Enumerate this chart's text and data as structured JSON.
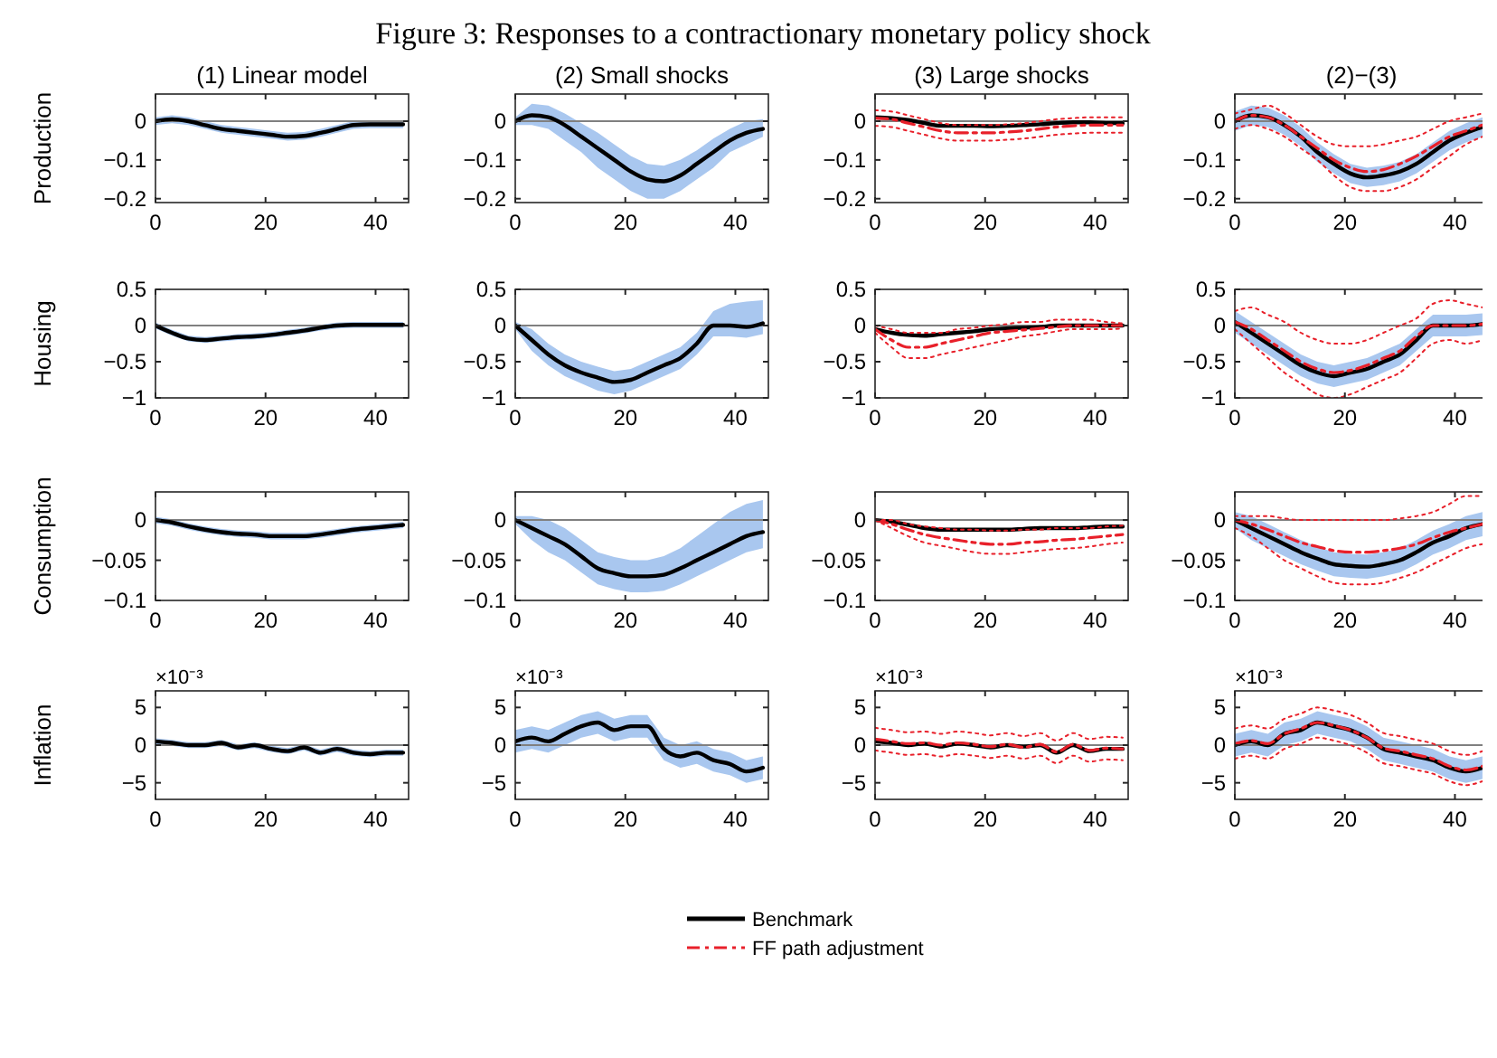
{
  "chart_data": [
    {
      "type": "other",
      "title": "Figure 3: Responses to a contractionary monetary policy shock"
    },
    {
      "type": "line",
      "title": "(1) Linear model",
      "ylabel": "Production",
      "xlim": [
        0,
        46
      ],
      "xticks": [
        0,
        20,
        40
      ],
      "ylim": [
        -0.21,
        0.07
      ],
      "yticks": [
        -0.2,
        -0.1,
        0
      ],
      "ref_lines": [
        {
          "axis": "y",
          "value": 0,
          "color": "#808080"
        }
      ],
      "x": [
        0,
        3,
        6,
        9,
        12,
        15,
        18,
        21,
        24,
        27,
        30,
        33,
        36,
        39,
        42,
        45
      ],
      "series": [
        {
          "color": "#000000",
          "line_style": "solid",
          "values": [
            0,
            0.005,
            0,
            -0.01,
            -0.02,
            -0.025,
            -0.03,
            -0.035,
            -0.04,
            -0.038,
            -0.03,
            -0.02,
            -0.01,
            -0.008,
            -0.008,
            -0.008
          ],
          "lower": [
            -0.01,
            -0.005,
            -0.01,
            -0.02,
            -0.03,
            -0.035,
            -0.04,
            -0.045,
            -0.05,
            -0.048,
            -0.04,
            -0.03,
            -0.02,
            -0.018,
            -0.018,
            -0.018
          ],
          "upper": [
            0.01,
            0.015,
            0.01,
            0,
            -0.01,
            -0.015,
            -0.02,
            -0.025,
            -0.03,
            -0.028,
            -0.02,
            -0.01,
            0,
            0.002,
            0.002,
            0.002
          ]
        }
      ]
    },
    {
      "type": "line",
      "title": "(2) Small shocks",
      "xlim": [
        0,
        46
      ],
      "xticks": [
        0,
        20,
        40
      ],
      "ylim": [
        -0.21,
        0.07
      ],
      "yticks": [
        -0.2,
        -0.1,
        0
      ],
      "ref_lines": [
        {
          "axis": "y",
          "value": 0,
          "color": "#808080"
        }
      ],
      "x": [
        0,
        3,
        6,
        9,
        12,
        15,
        18,
        21,
        24,
        27,
        30,
        33,
        36,
        39,
        42,
        45
      ],
      "series": [
        {
          "color": "#000000",
          "line_style": "solid",
          "values": [
            0,
            0.015,
            0.01,
            -0.01,
            -0.04,
            -0.07,
            -0.1,
            -0.13,
            -0.15,
            -0.155,
            -0.14,
            -0.11,
            -0.08,
            -0.05,
            -0.03,
            -0.02
          ],
          "lower": [
            -0.01,
            -0.01,
            -0.02,
            -0.05,
            -0.08,
            -0.12,
            -0.15,
            -0.18,
            -0.2,
            -0.2,
            -0.18,
            -0.15,
            -0.12,
            -0.08,
            -0.06,
            -0.04
          ],
          "upper": [
            0.01,
            0.045,
            0.04,
            0.02,
            -0.005,
            -0.03,
            -0.06,
            -0.09,
            -0.11,
            -0.115,
            -0.1,
            -0.075,
            -0.045,
            -0.02,
            0,
            0.005
          ]
        }
      ]
    },
    {
      "type": "line",
      "title": "(3) Large shocks",
      "xlim": [
        0,
        46
      ],
      "xticks": [
        0,
        20,
        40
      ],
      "ylim": [
        -0.21,
        0.07
      ],
      "yticks": [
        -0.2,
        -0.1,
        0
      ],
      "ref_lines": [
        {
          "axis": "y",
          "value": 0,
          "color": "#808080"
        }
      ],
      "x": [
        0,
        3,
        6,
        9,
        12,
        15,
        18,
        21,
        24,
        27,
        30,
        33,
        36,
        39,
        42,
        45
      ],
      "series": [
        {
          "color": "#000000",
          "line_style": "solid",
          "values": [
            0.01,
            0.008,
            0.003,
            -0.005,
            -0.012,
            -0.012,
            -0.012,
            -0.013,
            -0.012,
            -0.01,
            -0.008,
            -0.005,
            -0.003,
            -0.003,
            -0.005,
            -0.005
          ]
        },
        {
          "color": "#e8202a",
          "line_style": "dashed",
          "values": [
            0.008,
            0.005,
            -0.005,
            -0.015,
            -0.025,
            -0.03,
            -0.03,
            -0.03,
            -0.028,
            -0.025,
            -0.02,
            -0.015,
            -0.012,
            -0.01,
            -0.01,
            -0.01
          ]
        },
        {
          "color": "#e8202a",
          "line_style": "dotted",
          "values": [
            -0.012,
            -0.015,
            -0.025,
            -0.035,
            -0.045,
            -0.05,
            -0.05,
            -0.05,
            -0.048,
            -0.045,
            -0.04,
            -0.035,
            -0.032,
            -0.03,
            -0.03,
            -0.03
          ]
        },
        {
          "color": "#e8202a",
          "line_style": "dotted",
          "values": [
            0.028,
            0.025,
            0.015,
            0.005,
            -0.005,
            -0.01,
            -0.01,
            -0.01,
            -0.008,
            -0.005,
            0,
            0.005,
            0.008,
            0.01,
            0.01,
            0.01
          ]
        }
      ]
    },
    {
      "type": "line",
      "title": "(2)−(3)",
      "xlim": [
        0,
        46
      ],
      "xticks": [
        0,
        20,
        40
      ],
      "ylim": [
        -0.21,
        0.07
      ],
      "yticks": [
        -0.2,
        -0.1,
        0
      ],
      "ref_lines": [
        {
          "axis": "y",
          "value": 0,
          "color": "#808080"
        }
      ],
      "x": [
        0,
        3,
        6,
        9,
        12,
        15,
        18,
        21,
        24,
        27,
        30,
        33,
        36,
        39,
        42,
        45
      ],
      "series": [
        {
          "color": "#000000",
          "line_style": "solid",
          "values": [
            0,
            0.015,
            0.01,
            -0.01,
            -0.04,
            -0.08,
            -0.11,
            -0.135,
            -0.145,
            -0.14,
            -0.13,
            -0.11,
            -0.08,
            -0.05,
            -0.03,
            -0.015
          ],
          "lower": [
            -0.025,
            -0.01,
            -0.015,
            -0.035,
            -0.065,
            -0.105,
            -0.135,
            -0.16,
            -0.17,
            -0.165,
            -0.155,
            -0.135,
            -0.105,
            -0.075,
            -0.055,
            -0.04
          ],
          "upper": [
            0.025,
            0.04,
            0.035,
            0.015,
            -0.015,
            -0.055,
            -0.085,
            -0.11,
            -0.12,
            -0.115,
            -0.105,
            -0.085,
            -0.055,
            -0.025,
            -0.005,
            0.01
          ]
        },
        {
          "color": "#e8202a",
          "line_style": "dashed",
          "values": [
            0,
            0.015,
            0.01,
            -0.01,
            -0.04,
            -0.07,
            -0.1,
            -0.12,
            -0.13,
            -0.125,
            -0.11,
            -0.09,
            -0.065,
            -0.04,
            -0.025,
            -0.01
          ]
        },
        {
          "color": "#e8202a",
          "line_style": "dotted",
          "values": [
            -0.02,
            -0.01,
            -0.02,
            -0.04,
            -0.07,
            -0.1,
            -0.14,
            -0.17,
            -0.18,
            -0.18,
            -0.17,
            -0.15,
            -0.12,
            -0.09,
            -0.06,
            -0.04
          ]
        },
        {
          "color": "#e8202a",
          "line_style": "dotted",
          "values": [
            0.02,
            0.03,
            0.04,
            0.02,
            -0.01,
            -0.04,
            -0.06,
            -0.065,
            -0.065,
            -0.06,
            -0.05,
            -0.04,
            -0.02,
            0,
            0.01,
            0.02
          ]
        }
      ]
    },
    {
      "type": "line",
      "ylabel": "Housing",
      "xlim": [
        0,
        46
      ],
      "xticks": [
        0,
        20,
        40
      ],
      "ylim": [
        -1,
        0.5
      ],
      "yticks": [
        -1,
        -0.5,
        0,
        0.5
      ],
      "ref_lines": [
        {
          "axis": "y",
          "value": 0,
          "color": "#808080"
        }
      ],
      "x": [
        0,
        3,
        6,
        9,
        12,
        15,
        18,
        21,
        24,
        27,
        30,
        33,
        36,
        39,
        42,
        45
      ],
      "series": [
        {
          "color": "#000000",
          "line_style": "solid",
          "values": [
            0,
            -0.1,
            -0.18,
            -0.2,
            -0.18,
            -0.16,
            -0.15,
            -0.13,
            -0.1,
            -0.07,
            -0.03,
            0,
            0.01,
            0.01,
            0.01,
            0.01
          ],
          "lower": [
            -0.04,
            -0.14,
            -0.22,
            -0.24,
            -0.22,
            -0.2,
            -0.19,
            -0.17,
            -0.14,
            -0.11,
            -0.07,
            -0.04,
            -0.03,
            -0.03,
            -0.03,
            -0.03
          ],
          "upper": [
            0.04,
            -0.06,
            -0.14,
            -0.16,
            -0.14,
            -0.12,
            -0.11,
            -0.09,
            -0.06,
            -0.03,
            0.01,
            0.04,
            0.05,
            0.05,
            0.05,
            0.05
          ]
        }
      ]
    },
    {
      "type": "line",
      "xlim": [
        0,
        46
      ],
      "xticks": [
        0,
        20,
        40
      ],
      "ylim": [
        -1,
        0.5
      ],
      "yticks": [
        -1,
        -0.5,
        0,
        0.5
      ],
      "ref_lines": [
        {
          "axis": "y",
          "value": 0,
          "color": "#808080"
        }
      ],
      "x": [
        0,
        3,
        6,
        9,
        12,
        15,
        18,
        21,
        24,
        27,
        30,
        33,
        36,
        39,
        42,
        45
      ],
      "series": [
        {
          "color": "#000000",
          "line_style": "solid",
          "values": [
            0,
            -0.2,
            -0.4,
            -0.55,
            -0.65,
            -0.72,
            -0.78,
            -0.75,
            -0.65,
            -0.55,
            -0.45,
            -0.25,
            0,
            0,
            -0.02,
            0.03
          ],
          "lower": [
            -0.05,
            -0.35,
            -0.55,
            -0.7,
            -0.8,
            -0.9,
            -0.95,
            -0.9,
            -0.8,
            -0.7,
            -0.6,
            -0.4,
            -0.15,
            -0.15,
            -0.17,
            -0.12
          ],
          "upper": [
            0.05,
            -0.05,
            -0.25,
            -0.4,
            -0.5,
            -0.57,
            -0.63,
            -0.6,
            -0.5,
            -0.4,
            -0.3,
            -0.1,
            0.2,
            0.3,
            0.33,
            0.35
          ]
        }
      ]
    },
    {
      "type": "line",
      "xlim": [
        0,
        46
      ],
      "xticks": [
        0,
        20,
        40
      ],
      "ylim": [
        -1,
        0.5
      ],
      "yticks": [
        -1,
        -0.5,
        0,
        0.5
      ],
      "ref_lines": [
        {
          "axis": "y",
          "value": 0,
          "color": "#808080"
        }
      ],
      "x": [
        0,
        3,
        6,
        9,
        12,
        15,
        18,
        21,
        24,
        27,
        30,
        33,
        36,
        39,
        42,
        45
      ],
      "series": [
        {
          "color": "#000000",
          "line_style": "solid",
          "values": [
            -0.05,
            -0.1,
            -0.13,
            -0.14,
            -0.12,
            -0.1,
            -0.08,
            -0.05,
            -0.04,
            -0.03,
            -0.02,
            0,
            0,
            0,
            0,
            0
          ]
        },
        {
          "color": "#e8202a",
          "line_style": "dashed",
          "values": [
            -0.05,
            -0.2,
            -0.3,
            -0.3,
            -0.25,
            -0.2,
            -0.15,
            -0.1,
            -0.08,
            -0.06,
            -0.04,
            -0.02,
            0,
            0,
            0,
            0
          ]
        },
        {
          "color": "#e8202a",
          "line_style": "dotted",
          "values": [
            -0.1,
            -0.3,
            -0.45,
            -0.45,
            -0.4,
            -0.35,
            -0.3,
            -0.25,
            -0.2,
            -0.15,
            -0.12,
            -0.08,
            -0.05,
            -0.05,
            -0.05,
            -0.04
          ]
        },
        {
          "color": "#e8202a",
          "line_style": "dotted",
          "values": [
            0,
            -0.05,
            -0.1,
            -0.1,
            -0.1,
            -0.05,
            -0.03,
            0,
            0.02,
            0.05,
            0.05,
            0.08,
            0.08,
            0.08,
            0.05,
            0.03
          ]
        }
      ]
    },
    {
      "type": "line",
      "xlim": [
        0,
        46
      ],
      "xticks": [
        0,
        20,
        40
      ],
      "ylim": [
        -1,
        0.5
      ],
      "yticks": [
        -1,
        -0.5,
        0,
        0.5
      ],
      "ref_lines": [
        {
          "axis": "y",
          "value": 0,
          "color": "#808080"
        }
      ],
      "x": [
        0,
        3,
        6,
        9,
        12,
        15,
        18,
        21,
        24,
        27,
        30,
        33,
        36,
        39,
        42,
        45
      ],
      "series": [
        {
          "color": "#000000",
          "line_style": "solid",
          "values": [
            0.05,
            -0.1,
            -0.25,
            -0.4,
            -0.55,
            -0.65,
            -0.7,
            -0.65,
            -0.6,
            -0.5,
            -0.4,
            -0.2,
            0,
            0,
            0,
            0.02
          ],
          "lower": [
            -0.1,
            -0.25,
            -0.4,
            -0.55,
            -0.7,
            -0.8,
            -0.85,
            -0.8,
            -0.75,
            -0.65,
            -0.55,
            -0.35,
            -0.15,
            -0.15,
            -0.15,
            -0.13
          ],
          "upper": [
            0.2,
            0.05,
            -0.1,
            -0.25,
            -0.4,
            -0.5,
            -0.55,
            -0.5,
            -0.45,
            -0.35,
            -0.25,
            -0.05,
            0.15,
            0.15,
            0.15,
            0.17
          ]
        },
        {
          "color": "#e8202a",
          "line_style": "dashed",
          "values": [
            0.05,
            -0.05,
            -0.2,
            -0.35,
            -0.5,
            -0.6,
            -0.65,
            -0.62,
            -0.55,
            -0.45,
            -0.35,
            -0.15,
            0,
            0,
            0,
            0.02
          ]
        },
        {
          "color": "#e8202a",
          "line_style": "dotted",
          "values": [
            -0.05,
            -0.25,
            -0.45,
            -0.65,
            -0.8,
            -0.95,
            -1,
            -0.95,
            -0.85,
            -0.75,
            -0.65,
            -0.45,
            -0.25,
            -0.2,
            -0.25,
            -0.2
          ]
        },
        {
          "color": "#e8202a",
          "line_style": "dotted",
          "values": [
            0.2,
            0.25,
            0.15,
            0.05,
            -0.1,
            -0.2,
            -0.25,
            -0.25,
            -0.2,
            -0.1,
            0,
            0.1,
            0.3,
            0.35,
            0.3,
            0.25
          ]
        }
      ]
    },
    {
      "type": "line",
      "ylabel": "Consumption",
      "xlim": [
        0,
        46
      ],
      "xticks": [
        0,
        20,
        40
      ],
      "ylim": [
        -0.1,
        0.035
      ],
      "yticks": [
        -0.1,
        -0.05,
        0
      ],
      "ref_lines": [
        {
          "axis": "y",
          "value": 0,
          "color": "#808080"
        }
      ],
      "x": [
        0,
        3,
        6,
        9,
        12,
        15,
        18,
        21,
        24,
        27,
        30,
        33,
        36,
        39,
        42,
        45
      ],
      "series": [
        {
          "color": "#000000",
          "line_style": "solid",
          "values": [
            0,
            -0.003,
            -0.008,
            -0.012,
            -0.015,
            -0.017,
            -0.018,
            -0.02,
            -0.02,
            -0.02,
            -0.018,
            -0.015,
            -0.012,
            -0.01,
            -0.008,
            -0.006
          ],
          "lower": [
            -0.004,
            -0.007,
            -0.012,
            -0.016,
            -0.019,
            -0.021,
            -0.022,
            -0.024,
            -0.024,
            -0.024,
            -0.022,
            -0.019,
            -0.016,
            -0.014,
            -0.012,
            -0.01
          ],
          "upper": [
            0.004,
            0.001,
            -0.004,
            -0.008,
            -0.011,
            -0.013,
            -0.014,
            -0.016,
            -0.016,
            -0.016,
            -0.014,
            -0.011,
            -0.008,
            -0.006,
            -0.004,
            -0.002
          ]
        }
      ]
    },
    {
      "type": "line",
      "xlim": [
        0,
        46
      ],
      "xticks": [
        0,
        20,
        40
      ],
      "ylim": [
        -0.1,
        0.035
      ],
      "yticks": [
        -0.1,
        -0.05,
        0
      ],
      "ref_lines": [
        {
          "axis": "y",
          "value": 0,
          "color": "#808080"
        }
      ],
      "x": [
        0,
        3,
        6,
        9,
        12,
        15,
        18,
        21,
        24,
        27,
        30,
        33,
        36,
        39,
        42,
        45
      ],
      "series": [
        {
          "color": "#000000",
          "line_style": "solid",
          "values": [
            0,
            -0.01,
            -0.02,
            -0.03,
            -0.045,
            -0.06,
            -0.066,
            -0.07,
            -0.07,
            -0.068,
            -0.06,
            -0.05,
            -0.04,
            -0.03,
            -0.02,
            -0.015
          ],
          "lower": [
            -0.005,
            -0.025,
            -0.04,
            -0.05,
            -0.065,
            -0.08,
            -0.086,
            -0.09,
            -0.09,
            -0.088,
            -0.08,
            -0.07,
            -0.06,
            -0.05,
            -0.04,
            -0.035
          ],
          "upper": [
            0.005,
            0.005,
            0,
            -0.01,
            -0.025,
            -0.04,
            -0.046,
            -0.05,
            -0.05,
            -0.045,
            -0.035,
            -0.02,
            -0.005,
            0.01,
            0.02,
            0.025
          ]
        }
      ]
    },
    {
      "type": "line",
      "xlim": [
        0,
        46
      ],
      "xticks": [
        0,
        20,
        40
      ],
      "ylim": [
        -0.1,
        0.035
      ],
      "yticks": [
        -0.1,
        -0.05,
        0
      ],
      "ref_lines": [
        {
          "axis": "y",
          "value": 0,
          "color": "#808080"
        }
      ],
      "x": [
        0,
        3,
        6,
        9,
        12,
        15,
        18,
        21,
        24,
        27,
        30,
        33,
        36,
        39,
        42,
        45
      ],
      "series": [
        {
          "color": "#000000",
          "line_style": "solid",
          "values": [
            0,
            -0.002,
            -0.006,
            -0.01,
            -0.012,
            -0.012,
            -0.012,
            -0.012,
            -0.012,
            -0.011,
            -0.01,
            -0.01,
            -0.01,
            -0.009,
            -0.008,
            -0.008
          ]
        },
        {
          "color": "#e8202a",
          "line_style": "dashed",
          "values": [
            0,
            -0.005,
            -0.012,
            -0.018,
            -0.022,
            -0.025,
            -0.028,
            -0.03,
            -0.03,
            -0.028,
            -0.027,
            -0.025,
            -0.024,
            -0.022,
            -0.02,
            -0.018
          ]
        },
        {
          "color": "#e8202a",
          "line_style": "dotted",
          "values": [
            0,
            -0.01,
            -0.02,
            -0.028,
            -0.032,
            -0.036,
            -0.04,
            -0.042,
            -0.042,
            -0.04,
            -0.038,
            -0.036,
            -0.035,
            -0.033,
            -0.03,
            -0.028
          ]
        },
        {
          "color": "#e8202a",
          "line_style": "dotted",
          "values": [
            0,
            0,
            -0.005,
            -0.008,
            -0.01,
            -0.012,
            -0.012,
            -0.013,
            -0.013,
            -0.012,
            -0.012,
            -0.01,
            -0.01,
            -0.01,
            -0.008,
            -0.007
          ]
        }
      ]
    },
    {
      "type": "line",
      "xlim": [
        0,
        46
      ],
      "xticks": [
        0,
        20,
        40
      ],
      "ylim": [
        -0.1,
        0.035
      ],
      "yticks": [
        -0.1,
        -0.05,
        0
      ],
      "ref_lines": [
        {
          "axis": "y",
          "value": 0,
          "color": "#808080"
        }
      ],
      "x": [
        0,
        3,
        6,
        9,
        12,
        15,
        18,
        21,
        24,
        27,
        30,
        33,
        36,
        39,
        42,
        45
      ],
      "series": [
        {
          "color": "#000000",
          "line_style": "solid",
          "values": [
            0,
            -0.01,
            -0.02,
            -0.03,
            -0.04,
            -0.048,
            -0.055,
            -0.057,
            -0.058,
            -0.055,
            -0.05,
            -0.04,
            -0.028,
            -0.02,
            -0.01,
            -0.005
          ],
          "lower": [
            -0.01,
            -0.025,
            -0.035,
            -0.045,
            -0.055,
            -0.063,
            -0.07,
            -0.072,
            -0.073,
            -0.07,
            -0.065,
            -0.055,
            -0.043,
            -0.035,
            -0.025,
            -0.02
          ],
          "upper": [
            0.01,
            0.005,
            -0.005,
            -0.015,
            -0.025,
            -0.033,
            -0.04,
            -0.042,
            -0.043,
            -0.04,
            -0.035,
            -0.025,
            -0.013,
            -0.005,
            0.005,
            0.01
          ]
        },
        {
          "color": "#e8202a",
          "line_style": "dashed",
          "values": [
            0,
            -0.005,
            -0.012,
            -0.02,
            -0.028,
            -0.033,
            -0.038,
            -0.04,
            -0.04,
            -0.038,
            -0.035,
            -0.03,
            -0.022,
            -0.015,
            -0.01,
            -0.005
          ]
        },
        {
          "color": "#e8202a",
          "line_style": "dotted",
          "values": [
            -0.01,
            -0.02,
            -0.035,
            -0.05,
            -0.06,
            -0.07,
            -0.078,
            -0.08,
            -0.08,
            -0.078,
            -0.072,
            -0.065,
            -0.055,
            -0.045,
            -0.035,
            -0.03
          ]
        },
        {
          "color": "#e8202a",
          "line_style": "dotted",
          "values": [
            0.005,
            0.005,
            0.005,
            0.002,
            0,
            0,
            0,
            0,
            0,
            0,
            0.002,
            0.005,
            0.01,
            0.02,
            0.03,
            0.03
          ]
        }
      ]
    },
    {
      "type": "line",
      "ylabel": "Inflation",
      "annotations": [
        "×10⁻³"
      ],
      "xlim": [
        0,
        46
      ],
      "xticks": [
        0,
        20,
        40
      ],
      "ylim": [
        -7.2,
        7.2
      ],
      "yticks": [
        -5,
        0,
        5
      ],
      "ref_lines": [
        {
          "axis": "y",
          "value": 0,
          "color": "#808080"
        }
      ],
      "x": [
        0,
        3,
        6,
        9,
        12,
        15,
        18,
        21,
        24,
        27,
        30,
        33,
        36,
        39,
        42,
        45
      ],
      "series": [
        {
          "color": "#000000",
          "line_style": "solid",
          "values": [
            0.5,
            0.3,
            0,
            0,
            0.3,
            -0.3,
            0,
            -0.5,
            -0.8,
            -0.3,
            -1,
            -0.5,
            -1,
            -1.2,
            -1,
            -1
          ],
          "lower": [
            0.1,
            -0.1,
            -0.4,
            -0.4,
            -0.1,
            -0.7,
            -0.4,
            -0.9,
            -1.2,
            -0.7,
            -1.4,
            -0.9,
            -1.4,
            -1.6,
            -1.4,
            -1.4
          ],
          "upper": [
            0.9,
            0.7,
            0.4,
            0.4,
            0.7,
            0.1,
            0.4,
            -0.1,
            -0.4,
            0.1,
            -0.6,
            -0.1,
            -0.6,
            -0.8,
            -0.6,
            -0.6
          ]
        }
      ]
    },
    {
      "type": "line",
      "annotations": [
        "×10⁻³"
      ],
      "xlim": [
        0,
        46
      ],
      "xticks": [
        0,
        20,
        40
      ],
      "ylim": [
        -7.2,
        7.2
      ],
      "yticks": [
        -5,
        0,
        5
      ],
      "ref_lines": [
        {
          "axis": "y",
          "value": 0,
          "color": "#808080"
        }
      ],
      "x": [
        0,
        3,
        6,
        9,
        12,
        15,
        18,
        21,
        24,
        27,
        30,
        33,
        36,
        39,
        42,
        45
      ],
      "series": [
        {
          "color": "#000000",
          "line_style": "solid",
          "values": [
            0.5,
            1,
            0.5,
            1.5,
            2.5,
            3,
            2,
            2.5,
            2.5,
            -0.5,
            -1.5,
            -1,
            -2,
            -2.5,
            -3.5,
            -3
          ],
          "lower": [
            -1,
            -0.5,
            -1,
            0,
            1,
            1.5,
            0.5,
            1,
            1,
            -2,
            -3,
            -2.5,
            -3.5,
            -4,
            -5,
            -4.5
          ],
          "upper": [
            2,
            2.5,
            2,
            3,
            4,
            4.5,
            3.5,
            4,
            4,
            1,
            0,
            0.5,
            -0.5,
            -1,
            -2,
            -1.5
          ]
        }
      ]
    },
    {
      "type": "line",
      "annotations": [
        "×10⁻³"
      ],
      "legend": "bottom",
      "xlim": [
        0,
        46
      ],
      "xticks": [
        0,
        20,
        40
      ],
      "ylim": [
        -7.2,
        7.2
      ],
      "yticks": [
        -5,
        0,
        5
      ],
      "ref_lines": [
        {
          "axis": "y",
          "value": 0,
          "color": "#808080"
        }
      ],
      "x": [
        0,
        3,
        6,
        9,
        12,
        15,
        18,
        21,
        24,
        27,
        30,
        33,
        36,
        39,
        42,
        45
      ],
      "series": [
        {
          "name": "Benchmark",
          "color": "#000000",
          "line_style": "solid",
          "values": [
            0.5,
            0.3,
            0,
            0.2,
            -0.2,
            0.2,
            0,
            -0.3,
            0,
            -0.2,
            0,
            -1,
            0,
            -0.8,
            -0.5,
            -0.5
          ]
        },
        {
          "name": "FF path adjustment",
          "color": "#e8202a",
          "line_style": "dashed",
          "values": [
            0.8,
            0.5,
            0.2,
            0.3,
            0,
            0.3,
            0.1,
            -0.2,
            0.1,
            -0.3,
            0.1,
            -0.9,
            0.1,
            -0.7,
            -0.4,
            -0.5
          ]
        },
        {
          "color": "#e8202a",
          "line_style": "dotted",
          "values": [
            -0.7,
            -1,
            -1.3,
            -1.2,
            -1.5,
            -1.2,
            -1.4,
            -1.7,
            -1.4,
            -1.8,
            -1.4,
            -2.4,
            -1.4,
            -2.2,
            -1.9,
            -2
          ]
        },
        {
          "color": "#e8202a",
          "line_style": "dotted",
          "values": [
            2.3,
            2,
            1.7,
            1.8,
            1.5,
            1.8,
            1.6,
            1.3,
            1.6,
            1.2,
            1.6,
            0.6,
            1.6,
            0.8,
            1.1,
            1
          ]
        }
      ]
    },
    {
      "type": "line",
      "annotations": [
        "×10⁻³"
      ],
      "xlim": [
        0,
        46
      ],
      "xticks": [
        0,
        20,
        40
      ],
      "ylim": [
        -7.2,
        7.2
      ],
      "yticks": [
        -5,
        0,
        5
      ],
      "ref_lines": [
        {
          "axis": "y",
          "value": 0,
          "color": "#808080"
        }
      ],
      "x": [
        0,
        3,
        6,
        9,
        12,
        15,
        18,
        21,
        24,
        27,
        30,
        33,
        36,
        39,
        42,
        45
      ],
      "series": [
        {
          "color": "#000000",
          "line_style": "solid",
          "values": [
            0,
            0.5,
            0,
            1.5,
            2,
            3,
            2.5,
            2,
            1,
            -0.5,
            -1,
            -1.5,
            -2,
            -3,
            -3.5,
            -3
          ],
          "lower": [
            -1.5,
            -1,
            -1.5,
            0,
            0.5,
            1.5,
            1,
            0.5,
            -0.5,
            -2,
            -2.5,
            -3,
            -3.5,
            -4.5,
            -5,
            -4.5
          ],
          "upper": [
            1.5,
            2,
            1.5,
            3,
            3.5,
            4.5,
            4,
            3.5,
            2.5,
            1,
            0.5,
            0,
            -0.5,
            -1.5,
            -2,
            -1.5
          ]
        },
        {
          "color": "#e8202a",
          "line_style": "dashed",
          "values": [
            0.2,
            0.6,
            0.2,
            1.5,
            2.2,
            3,
            2.6,
            2,
            1,
            -0.4,
            -0.8,
            -1.3,
            -1.8,
            -2.8,
            -3.3,
            -2.8
          ]
        },
        {
          "color": "#e8202a",
          "line_style": "dotted",
          "values": [
            -1.8,
            -1.4,
            -1.8,
            -0.5,
            0.2,
            1,
            0.6,
            0,
            -1,
            -2.4,
            -2.8,
            -3.3,
            -3.8,
            -4.8,
            -5.3,
            -4.8
          ]
        },
        {
          "color": "#e8202a",
          "line_style": "dotted",
          "values": [
            2.2,
            2.6,
            2.2,
            3.5,
            4.2,
            5,
            4.6,
            4,
            3,
            1.6,
            1.2,
            0.7,
            0.2,
            -0.8,
            -1.3,
            -0.8
          ]
        }
      ]
    }
  ]
}
